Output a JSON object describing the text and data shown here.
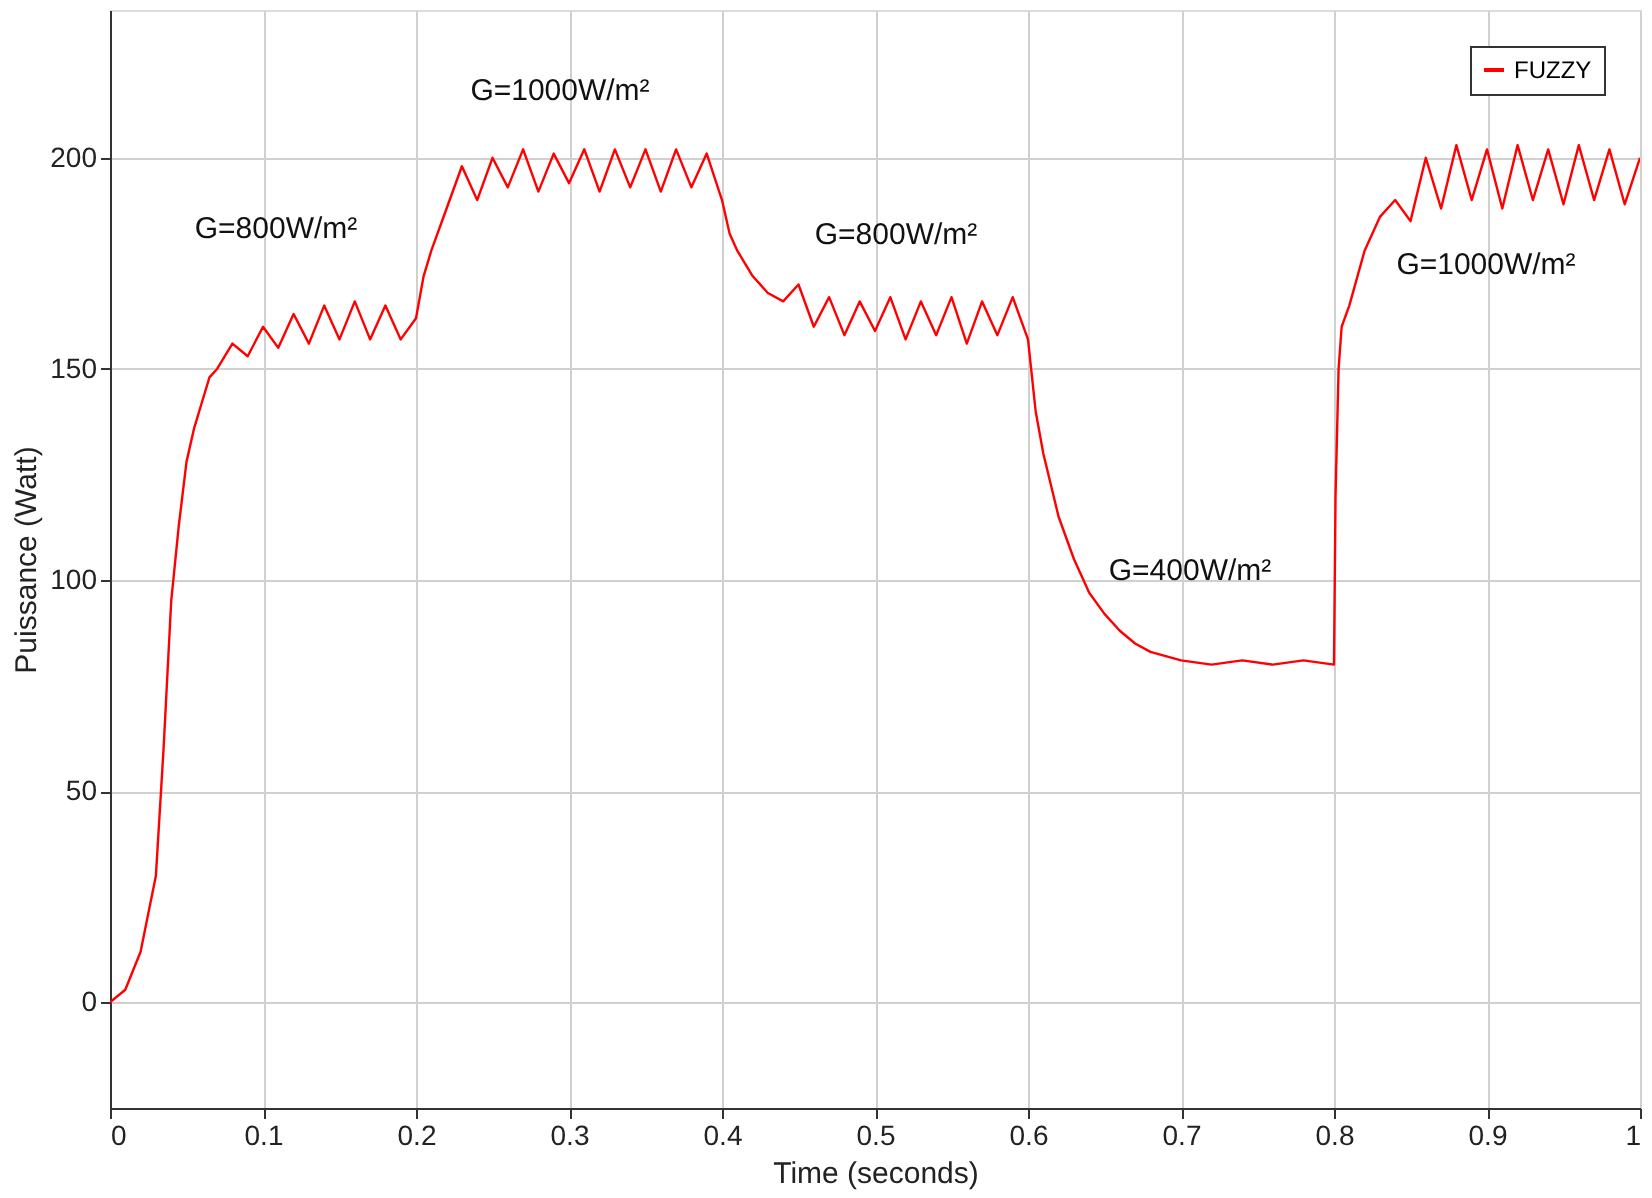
{
  "chart_data": {
    "type": "line",
    "xlabel": "Time (seconds)",
    "ylabel": "Puissance (Watt)",
    "xlim": [
      0,
      1
    ],
    "ylim": [
      -25,
      235
    ],
    "xticks": [
      0,
      0.1,
      0.2,
      0.3,
      0.4,
      0.5,
      0.6,
      0.7,
      0.8,
      0.9,
      1
    ],
    "yticks": [
      0,
      50,
      100,
      150,
      200
    ],
    "grid": true,
    "legend": "top right",
    "line_style": "solid",
    "marker": "none",
    "series": [
      {
        "name": "FUZZY",
        "color": "#ff0000",
        "x": [
          0,
          0.01,
          0.02,
          0.03,
          0.035,
          0.04,
          0.045,
          0.05,
          0.055,
          0.06,
          0.065,
          0.07,
          0.08,
          0.09,
          0.1,
          0.11,
          0.12,
          0.13,
          0.14,
          0.15,
          0.16,
          0.17,
          0.18,
          0.19,
          0.2,
          0.205,
          0.21,
          0.22,
          0.23,
          0.24,
          0.25,
          0.26,
          0.27,
          0.28,
          0.29,
          0.3,
          0.31,
          0.32,
          0.33,
          0.34,
          0.35,
          0.36,
          0.37,
          0.38,
          0.39,
          0.4,
          0.405,
          0.41,
          0.42,
          0.43,
          0.44,
          0.45,
          0.46,
          0.47,
          0.48,
          0.49,
          0.5,
          0.51,
          0.52,
          0.53,
          0.54,
          0.55,
          0.56,
          0.57,
          0.58,
          0.59,
          0.6,
          0.605,
          0.61,
          0.62,
          0.63,
          0.64,
          0.65,
          0.66,
          0.67,
          0.68,
          0.69,
          0.7,
          0.72,
          0.74,
          0.76,
          0.78,
          0.8,
          0.801,
          0.803,
          0.805,
          0.81,
          0.82,
          0.83,
          0.84,
          0.85,
          0.86,
          0.87,
          0.88,
          0.89,
          0.9,
          0.91,
          0.92,
          0.93,
          0.94,
          0.95,
          0.96,
          0.97,
          0.98,
          0.99,
          1
        ],
        "values": [
          0,
          3,
          12,
          30,
          60,
          95,
          113,
          128,
          136,
          142,
          148,
          150,
          156,
          153,
          160,
          155,
          163,
          156,
          165,
          157,
          166,
          157,
          165,
          157,
          162,
          172,
          178,
          188,
          198,
          190,
          200,
          193,
          202,
          192,
          201,
          194,
          202,
          192,
          202,
          193,
          202,
          192,
          202,
          193,
          201,
          190,
          182,
          178,
          172,
          168,
          166,
          170,
          160,
          167,
          158,
          166,
          159,
          167,
          157,
          166,
          158,
          167,
          156,
          166,
          158,
          167,
          157,
          140,
          130,
          115,
          105,
          97,
          92,
          88,
          85,
          83,
          82,
          81,
          80,
          81,
          80,
          81,
          80,
          120,
          150,
          160,
          165,
          178,
          186,
          190,
          185,
          200,
          188,
          203,
          190,
          202,
          188,
          203,
          190,
          202,
          189,
          203,
          190,
          202,
          189,
          200
        ]
      }
    ],
    "annotations": [
      "G=800W/m²",
      "G=1000W/m²",
      "G=800W/m²",
      "G=400W/m²",
      "G=1000W/m²"
    ]
  }
}
